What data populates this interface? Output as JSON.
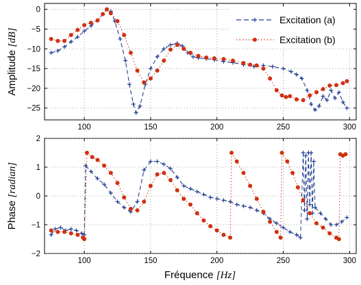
{
  "chart_data": [
    {
      "type": "line",
      "panel": "top",
      "ylabel": "Amplitude [dB]",
      "ylabel_plain": "Amplitude ",
      "ylabel_unit": "[dB]",
      "xlim": [
        70,
        305
      ],
      "ylim": [
        -28,
        1.5
      ],
      "x_ticks": [
        100,
        150,
        200,
        250,
        300
      ],
      "y_ticks": [
        0,
        -5,
        -10,
        -15,
        -20,
        -25
      ],
      "grid": true,
      "legend_position": "top-right",
      "series": [
        {
          "name": "Excitation (a)",
          "color": "#1f3b8f",
          "line_style": "dashed",
          "marker": "plus",
          "points": [
            [
              75,
              -11
            ],
            [
              80,
              -10.5
            ],
            [
              85,
              -9.5
            ],
            [
              90,
              -8.2
            ],
            [
              95,
              -7
            ],
            [
              100,
              -5.5
            ],
            [
              105,
              -4.2
            ],
            [
              110,
              -2.8
            ],
            [
              114,
              -1.2
            ],
            [
              117,
              0
            ],
            [
              120,
              -0.5
            ],
            [
              123,
              -3
            ],
            [
              127,
              -7.5
            ],
            [
              131,
              -13
            ],
            [
              134,
              -19
            ],
            [
              137,
              -24
            ],
            [
              139,
              -26.2
            ],
            [
              142,
              -24.5
            ],
            [
              146,
              -19
            ],
            [
              150,
              -15
            ],
            [
              155,
              -12
            ],
            [
              160,
              -10
            ],
            [
              165,
              -9
            ],
            [
              170,
              -8.6
            ],
            [
              174,
              -9.3
            ],
            [
              178,
              -11
            ],
            [
              182,
              -12
            ],
            [
              186,
              -12.3
            ],
            [
              192,
              -12.5
            ],
            [
              198,
              -12.8
            ],
            [
              205,
              -13.2
            ],
            [
              212,
              -13.5
            ],
            [
              220,
              -14
            ],
            [
              228,
              -14.5
            ],
            [
              235,
              -14.2
            ],
            [
              242,
              -14.5
            ],
            [
              250,
              -15
            ],
            [
              256,
              -15.8
            ],
            [
              260,
              -16.5
            ],
            [
              264,
              -17.5
            ],
            [
              268,
              -20.5
            ],
            [
              271,
              -24
            ],
            [
              274,
              -25.5
            ],
            [
              277,
              -24.5
            ],
            [
              280,
              -22
            ],
            [
              283,
              -23
            ],
            [
              286,
              -20.5
            ],
            [
              289,
              -22.5
            ],
            [
              292,
              -21
            ],
            [
              295,
              -23.5
            ],
            [
              298,
              -25
            ]
          ]
        },
        {
          "name": "Excitation (b)",
          "color": "#d03010",
          "line_style": "dotted",
          "marker": "circle",
          "points": [
            [
              75,
              -7.5
            ],
            [
              80,
              -8
            ],
            [
              85,
              -8
            ],
            [
              90,
              -6.5
            ],
            [
              95,
              -5.2
            ],
            [
              100,
              -4
            ],
            [
              105,
              -3.4
            ],
            [
              110,
              -2.8
            ],
            [
              114,
              -1.2
            ],
            [
              117,
              0
            ],
            [
              120,
              -1
            ],
            [
              125,
              -3
            ],
            [
              130,
              -6.5
            ],
            [
              135,
              -11
            ],
            [
              140,
              -15.5
            ],
            [
              145,
              -18.5
            ],
            [
              150,
              -17.5
            ],
            [
              155,
              -15.5
            ],
            [
              160,
              -13
            ],
            [
              165,
              -10.2
            ],
            [
              170,
              -9
            ],
            [
              175,
              -10
            ],
            [
              180,
              -11
            ],
            [
              186,
              -11.8
            ],
            [
              192,
              -12.2
            ],
            [
              198,
              -12.4
            ],
            [
              205,
              -12.6
            ],
            [
              212,
              -13
            ],
            [
              220,
              -13.6
            ],
            [
              225,
              -14
            ],
            [
              230,
              -14.2
            ],
            [
              235,
              -15
            ],
            [
              240,
              -17.5
            ],
            [
              245,
              -20.5
            ],
            [
              249,
              -21.8
            ],
            [
              252,
              -22.2
            ],
            [
              255,
              -22
            ],
            [
              260,
              -22.8
            ],
            [
              265,
              -23
            ],
            [
              270,
              -21.8
            ],
            [
              275,
              -21
            ],
            [
              280,
              -20.2
            ],
            [
              285,
              -19.3
            ],
            [
              290,
              -19.2
            ],
            [
              295,
              -18.7
            ],
            [
              298,
              -18.2
            ]
          ]
        }
      ]
    },
    {
      "type": "line",
      "panel": "bottom",
      "ylabel": "Phase [radian]",
      "ylabel_plain": "Phase ",
      "ylabel_unit": "[radian]",
      "xlabel": "Fréquence [Hz]",
      "xlabel_plain": "Fréquence ",
      "xlabel_unit": "[Hz]",
      "xlim": [
        70,
        305
      ],
      "ylim": [
        -2,
        2
      ],
      "x_ticks": [
        100,
        150,
        200,
        250,
        300
      ],
      "y_ticks": [
        2,
        1,
        0,
        -1,
        -2
      ],
      "grid": true,
      "series": [
        {
          "name": "Excitation (a)",
          "color": "#1f3b8f",
          "line_style": "dashed",
          "marker": "plus",
          "segments": [
            [
              [
                75,
                -1.35
              ],
              [
                78,
                -1.15
              ],
              [
                82,
                -1.1
              ],
              [
                86,
                -1.2
              ],
              [
                90,
                -1.15
              ],
              [
                94,
                -1.2
              ],
              [
                98,
                -1.3
              ],
              [
                100,
                -1.35
              ]
            ],
            [
              [
                101,
                1.05
              ],
              [
                105,
                0.85
              ],
              [
                110,
                0.6
              ],
              [
                115,
                0.4
              ],
              [
                120,
                0.1
              ],
              [
                125,
                -0.2
              ],
              [
                130,
                -0.4
              ],
              [
                135,
                -0.55
              ],
              [
                140,
                -0.2
              ],
              [
                145,
                0.9
              ],
              [
                150,
                1.2
              ],
              [
                155,
                1.2
              ],
              [
                160,
                1.1
              ],
              [
                165,
                0.95
              ],
              [
                170,
                0.65
              ],
              [
                175,
                0.35
              ],
              [
                180,
                0.25
              ],
              [
                185,
                0.15
              ],
              [
                190,
                0.05
              ],
              [
                195,
                -0.05
              ],
              [
                200,
                -0.1
              ],
              [
                205,
                -0.15
              ],
              [
                210,
                -0.2
              ],
              [
                215,
                -0.3
              ],
              [
                220,
                -0.35
              ],
              [
                225,
                -0.4
              ],
              [
                230,
                -0.5
              ],
              [
                235,
                -0.6
              ],
              [
                240,
                -0.8
              ],
              [
                245,
                -0.95
              ],
              [
                250,
                -1.1
              ],
              [
                255,
                -1.25
              ],
              [
                260,
                -1.35
              ],
              [
                263,
                -1.45
              ]
            ],
            [
              [
                265,
                1.5
              ],
              [
                266,
                -0.5
              ],
              [
                267,
                1.4
              ],
              [
                268,
                -0.8
              ],
              [
                269,
                1.5
              ],
              [
                270,
                -0.3
              ],
              [
                271,
                1.5
              ],
              [
                272,
                -0.6
              ],
              [
                273,
                1.2
              ]
            ],
            [
              [
                274,
                -0.4
              ],
              [
                278,
                -0.6
              ],
              [
                282,
                -0.8
              ],
              [
                286,
                -1.0
              ],
              [
                290,
                -1.0
              ],
              [
                294,
                -0.9
              ],
              [
                298,
                -0.75
              ]
            ]
          ]
        },
        {
          "name": "Excitation (b)",
          "color": "#d03010",
          "line_style": "dotted",
          "marker": "circle",
          "segments": [
            [
              [
                75,
                -1.2
              ],
              [
                80,
                -1.25
              ],
              [
                85,
                -1.25
              ],
              [
                90,
                -1.3
              ],
              [
                95,
                -1.35
              ],
              [
                99,
                -1.45
              ],
              [
                100,
                -1.5
              ]
            ],
            [
              [
                102,
                1.5
              ],
              [
                106,
                1.35
              ],
              [
                110,
                1.25
              ],
              [
                115,
                1.05
              ],
              [
                120,
                0.8
              ],
              [
                125,
                0.45
              ],
              [
                130,
                -0.05
              ],
              [
                135,
                -0.45
              ],
              [
                140,
                -0.5
              ],
              [
                145,
                -0.2
              ],
              [
                150,
                0.35
              ],
              [
                155,
                0.75
              ],
              [
                160,
                0.8
              ],
              [
                165,
                0.55
              ],
              [
                170,
                0.2
              ],
              [
                175,
                -0.1
              ],
              [
                180,
                -0.3
              ],
              [
                185,
                -0.6
              ],
              [
                190,
                -0.85
              ],
              [
                195,
                -1.05
              ],
              [
                200,
                -1.2
              ],
              [
                205,
                -1.35
              ],
              [
                210,
                -1.45
              ]
            ],
            [
              [
                211,
                1.5
              ],
              [
                215,
                1.2
              ],
              [
                220,
                0.8
              ],
              [
                225,
                0.35
              ],
              [
                230,
                -0.1
              ],
              [
                235,
                -0.55
              ],
              [
                240,
                -0.9
              ],
              [
                245,
                -1.25
              ],
              [
                248,
                -1.45
              ]
            ],
            [
              [
                249,
                1.5
              ],
              [
                253,
                1.2
              ],
              [
                257,
                0.8
              ],
              [
                261,
                0.3
              ],
              [
                265,
                -0.15
              ],
              [
                270,
                -0.6
              ],
              [
                275,
                -0.95
              ],
              [
                280,
                -1.1
              ],
              [
                285,
                -1.3
              ],
              [
                290,
                -1.45
              ],
              [
                292,
                -1.5
              ]
            ],
            [
              [
                293,
                1.45
              ],
              [
                295,
                1.4
              ],
              [
                297,
                1.45
              ]
            ]
          ]
        }
      ]
    }
  ],
  "legend": [
    {
      "label": "Excitation (a)",
      "color": "#1f3b8f",
      "marker": "plus",
      "line_style": "dashed"
    },
    {
      "label": "Excitation (b)",
      "color": "#d03010",
      "marker": "circle",
      "line_style": "dotted"
    }
  ]
}
